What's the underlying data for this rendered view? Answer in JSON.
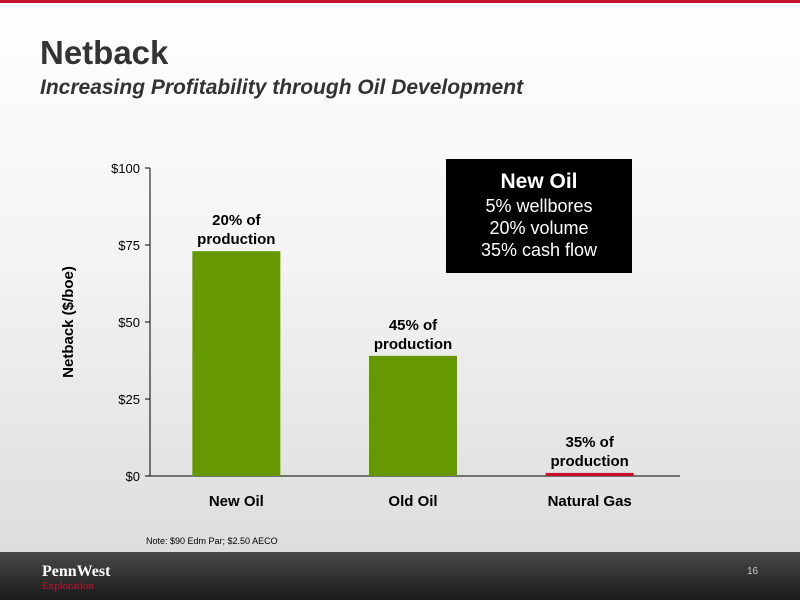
{
  "slide": {
    "title": "Netback",
    "subtitle": "Increasing Profitability through Oil Development",
    "note": "Note: $90 Edm Par; $2.50 AECO",
    "page_number": "16",
    "logo_main": "PennWest",
    "logo_sub": "Exploration"
  },
  "callout": {
    "title": "New Oil",
    "lines": [
      "5% wellbores",
      "20% volume",
      "35% cash flow"
    ]
  },
  "colors": {
    "oil_bar": "#669900",
    "gas_bar": "#c8102e",
    "accent": "#c8102e",
    "axis": "#000000"
  },
  "chart_data": {
    "type": "bar",
    "categories": [
      "New Oil",
      "Old Oil",
      "Natural Gas"
    ],
    "values": [
      73,
      39,
      1
    ],
    "bar_labels": [
      "20% of\nproduction",
      "45% of\nproduction",
      "35% of\nproduction"
    ],
    "bar_colors": [
      "#669900",
      "#669900",
      "#c8102e"
    ],
    "ylabel": "Netback ($/boe)",
    "xlabel": "",
    "ylim": [
      0,
      100
    ],
    "yticks": [
      0,
      25,
      50,
      75,
      100
    ],
    "ytick_labels": [
      "$0",
      "$25",
      "$50",
      "$75",
      "$100"
    ],
    "grid": false,
    "legend": "none"
  }
}
